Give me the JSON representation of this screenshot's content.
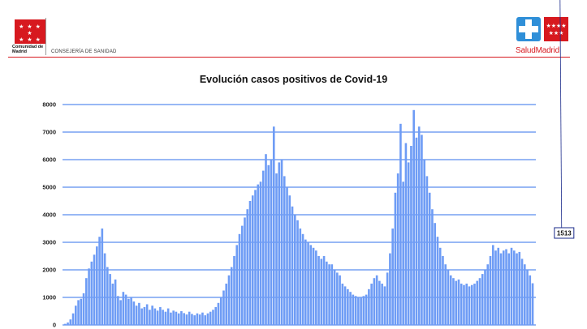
{
  "header": {
    "org_name": "Comunidad de Madrid",
    "department": "CONSEJERÍA DE SANIDAD",
    "brand_name": "SaludMadrid"
  },
  "colors": {
    "bar": "#6e9cf5",
    "grid": "#5b8def",
    "accent_red": "#d7191f",
    "brand_blue": "#2f8fd8"
  },
  "icons": {
    "left_logo": "madrid-stars-flag-icon",
    "right_logo": "saludmadrid-cross-icon"
  },
  "chart_data": {
    "type": "bar",
    "title": "Evolución casos positivos de Covid-19",
    "xlabel": "",
    "ylabel": "",
    "ylim": [
      0,
      8000
    ],
    "yticks": [
      0,
      1000,
      2000,
      3000,
      4000,
      5000,
      6000,
      7000,
      8000
    ],
    "grid": true,
    "legend": "none",
    "series": [
      {
        "values": [
          40,
          90,
          200,
          420,
          700,
          900,
          950,
          1150,
          1700,
          2050,
          2300,
          2550,
          2850,
          3200,
          3500,
          2600,
          2100,
          1850,
          1500,
          1650,
          1050,
          900,
          1200,
          1100,
          950,
          1000,
          850,
          700,
          800,
          600,
          650,
          750,
          550,
          700,
          600,
          520,
          650,
          550,
          480,
          600,
          450,
          520,
          480,
          420,
          500,
          430,
          380,
          480,
          400,
          350,
          420,
          380,
          450,
          350,
          420,
          480,
          550,
          650,
          800,
          1000,
          1250,
          1500,
          1800,
          2100,
          2500,
          2900,
          3300,
          3600,
          3900,
          4200,
          4500,
          4700,
          4900,
          5100,
          5200,
          5600,
          6200,
          5800,
          6000,
          7200,
          5500,
          5900,
          6000,
          5400,
          5000,
          4700,
          4300,
          4000,
          3800,
          3500,
          3300,
          3100,
          3000,
          2900,
          2800,
          2700,
          2500,
          2400,
          2500,
          2300,
          2200,
          2200,
          2000,
          1900,
          1800,
          1500,
          1400,
          1300,
          1200,
          1100,
          1050,
          1000,
          1000,
          1050,
          1100,
          1300,
          1500,
          1700,
          1800,
          1600,
          1500,
          1400,
          1900,
          2600,
          3500,
          4800,
          5500,
          7300,
          5200,
          6600,
          5900,
          6500,
          7800,
          6800,
          7200,
          6900,
          6000,
          5400,
          4800,
          4200,
          3700,
          3200,
          2800,
          2500,
          2200,
          2000,
          1800,
          1700,
          1600,
          1650,
          1500,
          1450,
          1500,
          1400,
          1450,
          1500,
          1600,
          1700,
          1850,
          2000,
          2200,
          2500,
          2900,
          2700,
          2800,
          2600,
          2700,
          2750,
          2600,
          2800,
          2700,
          2600,
          2650,
          2400,
          2200,
          2000,
          1800,
          1513
        ]
      }
    ],
    "annotation": {
      "index": 188,
      "label": "1513"
    }
  }
}
